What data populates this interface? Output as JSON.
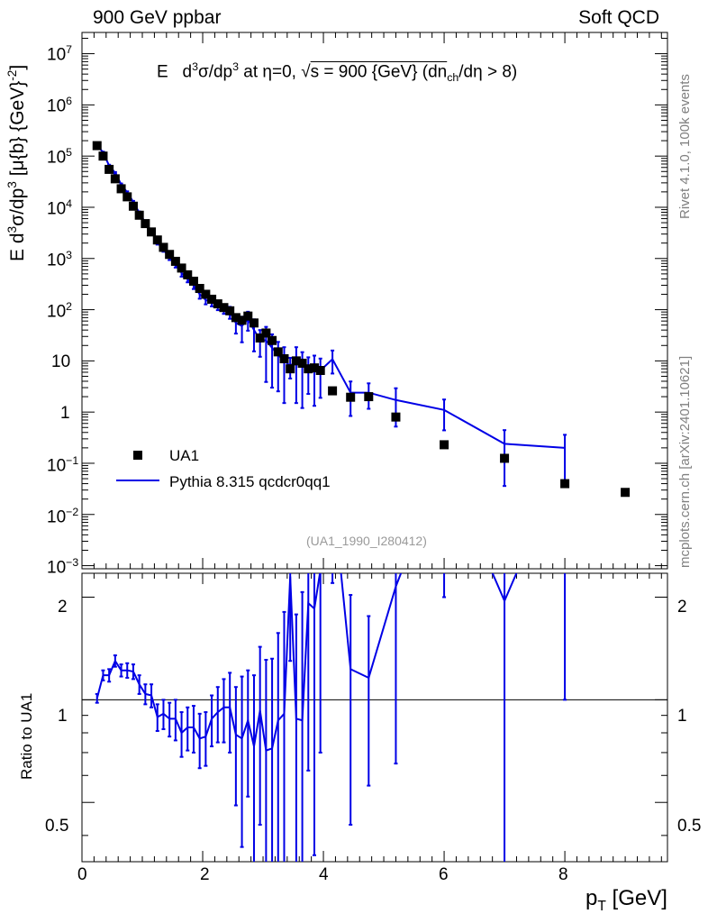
{
  "header": {
    "left": "900 GeV ppbar",
    "right": "Soft QCD"
  },
  "side_labels": {
    "rivet": "Rivet 4.1.0,  100k events",
    "mcplots": "mcplots.cern.ch [arXiv:2401.10621]"
  },
  "analysis_ref": "(UA1_1990_I280412)",
  "colors": {
    "mc": "#0000e6",
    "data": "#000000",
    "ref": "#9a9a9a",
    "side": "#808080"
  },
  "chart_data": {
    "type": "scatter",
    "title": "E d³σ/dp³ at η=0, √s = 900 {GeV} (dn_ch/dη > 8)",
    "title_parts": {
      "a": "E",
      "b": "d",
      "c": "3",
      "d": "σ/dp",
      "e": "3",
      "f": " at η=0, ",
      "g": "√",
      "h": "s = 900 {GeV} (dn",
      "i": "ch",
      "j": "/dη > 8)"
    },
    "ylabel_parts": {
      "a": "E d",
      "b": "3",
      "c": "σ/dp",
      "d": "3",
      "e": " [μ{b} {GeV}",
      "f": "-2",
      "g": "]"
    },
    "xlabel_parts": {
      "a": "p",
      "b": "T",
      "c": " [GeV]"
    },
    "ratio_ylabel": "Ratio to UA1",
    "xlim": [
      0,
      9.7
    ],
    "ylim": [
      0.00087,
      26000000
    ],
    "ratio_ylim": [
      0.335,
      2.35
    ],
    "x_ticks": [
      "0",
      "2",
      "4",
      "6",
      "8"
    ],
    "y_ticks": [
      {
        "base": "10",
        "exp": "7"
      },
      {
        "base": "10",
        "exp": "6"
      },
      {
        "base": "10",
        "exp": "5"
      },
      {
        "base": "10",
        "exp": "4"
      },
      {
        "base": "10",
        "exp": "3"
      },
      {
        "base": "10",
        "exp": "2"
      },
      {
        "base": "10",
        "exp": ""
      },
      {
        "base": "1",
        "exp": ""
      },
      {
        "base": "10",
        "exp": "−1"
      },
      {
        "base": "10",
        "exp": "−2"
      },
      {
        "base": "10",
        "exp": "−3"
      }
    ],
    "ratio_ticks_left": [
      "2",
      "1",
      "0.5"
    ],
    "ratio_ticks_right": [
      "2",
      "1",
      "0.5"
    ],
    "legend": {
      "data": "UA1",
      "mc": "Pythia 8.315 qcdcr0qq1"
    },
    "series": [
      {
        "name": "UA1",
        "x": [
          0.25,
          0.35,
          0.45,
          0.55,
          0.65,
          0.75,
          0.85,
          0.95,
          1.05,
          1.15,
          1.25,
          1.35,
          1.45,
          1.55,
          1.65,
          1.75,
          1.85,
          1.95,
          2.05,
          2.15,
          2.25,
          2.35,
          2.45,
          2.55,
          2.65,
          2.75,
          2.85,
          2.95,
          3.05,
          3.15,
          3.25,
          3.35,
          3.45,
          3.55,
          3.65,
          3.75,
          3.85,
          3.95,
          4.15,
          4.45,
          4.75,
          5.2,
          6,
          7,
          8,
          9
        ],
        "y": [
          160000,
          100000,
          55000,
          36000,
          23000,
          16000,
          10500,
          7000,
          4800,
          3300,
          2300,
          1650,
          1200,
          880,
          650,
          480,
          360,
          260,
          200,
          160,
          130,
          110,
          95,
          70,
          62,
          75,
          55,
          28,
          35,
          25,
          15,
          11,
          7,
          10,
          9,
          7,
          7.3,
          6.5,
          2.6,
          1.95,
          2.0,
          0.8,
          0.23,
          0.125,
          0.04,
          0.027
        ]
      },
      {
        "name": "Pythia 8.315 qcdcr0qq1",
        "x": [
          0.25,
          0.35,
          0.45,
          0.55,
          0.65,
          0.75,
          0.85,
          0.95,
          1.05,
          1.15,
          1.25,
          1.35,
          1.45,
          1.55,
          1.65,
          1.75,
          1.85,
          1.95,
          2.05,
          2.15,
          2.25,
          2.35,
          2.45,
          2.55,
          2.65,
          2.75,
          2.85,
          2.95,
          3.05,
          3.15,
          3.25,
          3.35,
          3.45,
          3.55,
          3.65,
          3.75,
          3.85,
          3.95,
          4.15,
          4.45,
          4.75,
          5.2,
          6,
          7,
          8
        ],
        "y": [
          162000,
          118000,
          65000,
          47000,
          28000,
          19500,
          12700,
          7800,
          5000,
          3400,
          2050,
          1500,
          1050,
          770,
          520,
          400,
          300,
          200,
          155,
          140,
          120,
          105,
          90,
          55,
          48,
          65,
          40,
          26,
          25,
          18,
          13,
          10,
          8,
          10,
          8,
          7,
          7,
          6.5,
          10.8,
          2.4,
          2.4,
          1.72,
          1.1,
          0.24,
          0.2
        ],
        "ratio": [
          1.01,
          1.18,
          1.18,
          1.3,
          1.22,
          1.22,
          1.21,
          1.11,
          1.04,
          1.03,
          0.89,
          0.91,
          0.88,
          0.88,
          0.8,
          0.83,
          0.83,
          0.77,
          0.78,
          0.88,
          0.92,
          0.95,
          0.95,
          0.79,
          0.77,
          0.87,
          0.73,
          0.93,
          0.71,
          0.72,
          0.87,
          0.91,
          2.3,
          0.88,
          0.87,
          1.92,
          1.85,
          2.4,
          4.2,
          1.23,
          1.16,
          2.15,
          5.0,
          1.95,
          5.0
        ],
        "ratio_err": [
          0.03,
          0.04,
          0.05,
          0.05,
          0.05,
          0.06,
          0.06,
          0.07,
          0.07,
          0.08,
          0.08,
          0.09,
          0.1,
          0.12,
          0.12,
          0.12,
          0.13,
          0.14,
          0.14,
          0.15,
          0.17,
          0.2,
          0.25,
          0.3,
          0.4,
          0.35,
          0.45,
          0.5,
          0.6,
          0.6,
          0.7,
          0.9,
          1.0,
          0.9,
          1.2,
          1.3,
          1.5,
          1.7,
          2.0,
          0.8,
          0.6,
          1.5,
          3.0,
          1.8,
          4.0
        ]
      }
    ]
  }
}
